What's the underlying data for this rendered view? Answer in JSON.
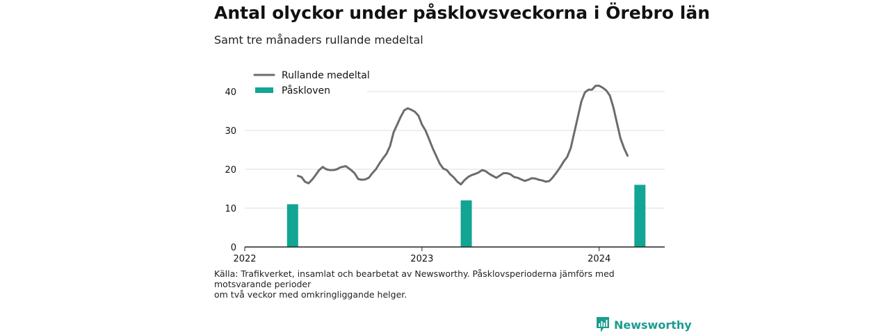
{
  "title": "Antal olyckor under påsklovsveckorna i Örebro län",
  "subtitle": "Samt tre månaders rullande medeltal",
  "source_line1": "Källa: Trafikverket, insamlat och bearbetat av Newsworthy. Påsklovsperioderna jämförs med motsvarande perioder",
  "source_line2": "om två veckor med omkringliggande helger.",
  "brand": "Newsworthy",
  "colors": {
    "line": "#6b6b70",
    "bar": "#12a594",
    "brand": "#1a9d8f",
    "grid": "#dddddd",
    "axis": "#222222"
  },
  "chart_data": {
    "type": "bar+line",
    "xlim": [
      2022.0,
      2024.37
    ],
    "ylim": [
      0,
      40
    ],
    "yticks": [
      0,
      10,
      20,
      30,
      40
    ],
    "xticks": [
      {
        "value": 2022.0,
        "label": "2022"
      },
      {
        "value": 2023.0,
        "label": "2023"
      },
      {
        "value": 2024.0,
        "label": "2024"
      }
    ],
    "grid": true,
    "legend_position": "top-left",
    "bars": {
      "name": "Påskloven",
      "points": [
        {
          "x": 2022.27,
          "y": 11
        },
        {
          "x": 2023.25,
          "y": 12
        },
        {
          "x": 2024.23,
          "y": 16
        }
      ]
    },
    "line": {
      "name": "Rullande medeltal",
      "points": [
        [
          2022.3,
          18.3
        ],
        [
          2022.32,
          18.0
        ],
        [
          2022.34,
          16.8
        ],
        [
          2022.36,
          16.4
        ],
        [
          2022.38,
          17.3
        ],
        [
          2022.4,
          18.5
        ],
        [
          2022.42,
          19.8
        ],
        [
          2022.44,
          20.6
        ],
        [
          2022.46,
          20.0
        ],
        [
          2022.48,
          19.8
        ],
        [
          2022.5,
          19.8
        ],
        [
          2022.52,
          20.0
        ],
        [
          2022.54,
          20.5
        ],
        [
          2022.57,
          20.8
        ],
        [
          2022.6,
          19.8
        ],
        [
          2022.62,
          19.0
        ],
        [
          2022.64,
          17.5
        ],
        [
          2022.66,
          17.3
        ],
        [
          2022.68,
          17.4
        ],
        [
          2022.7,
          17.8
        ],
        [
          2022.72,
          19.0
        ],
        [
          2022.74,
          20.0
        ],
        [
          2022.76,
          21.5
        ],
        [
          2022.78,
          22.8
        ],
        [
          2022.8,
          24.0
        ],
        [
          2022.82,
          26.0
        ],
        [
          2022.84,
          29.5
        ],
        [
          2022.86,
          31.5
        ],
        [
          2022.88,
          33.5
        ],
        [
          2022.9,
          35.2
        ],
        [
          2022.92,
          35.7
        ],
        [
          2022.94,
          35.3
        ],
        [
          2022.96,
          34.8
        ],
        [
          2022.98,
          33.8
        ],
        [
          2023.0,
          31.5
        ],
        [
          2023.02,
          30.0
        ],
        [
          2023.04,
          27.8
        ],
        [
          2023.06,
          25.5
        ],
        [
          2023.08,
          23.5
        ],
        [
          2023.1,
          21.5
        ],
        [
          2023.12,
          20.2
        ],
        [
          2023.14,
          19.8
        ],
        [
          2023.16,
          18.7
        ],
        [
          2023.18,
          17.9
        ],
        [
          2023.2,
          16.8
        ],
        [
          2023.22,
          16.1
        ],
        [
          2023.24,
          17.2
        ],
        [
          2023.26,
          18.0
        ],
        [
          2023.28,
          18.5
        ],
        [
          2023.3,
          18.8
        ],
        [
          2023.32,
          19.2
        ],
        [
          2023.34,
          19.8
        ],
        [
          2023.36,
          19.5
        ],
        [
          2023.38,
          18.8
        ],
        [
          2023.4,
          18.3
        ],
        [
          2023.42,
          17.8
        ],
        [
          2023.44,
          18.4
        ],
        [
          2023.46,
          19.0
        ],
        [
          2023.48,
          19.0
        ],
        [
          2023.5,
          18.7
        ],
        [
          2023.52,
          18.0
        ],
        [
          2023.54,
          17.8
        ],
        [
          2023.56,
          17.4
        ],
        [
          2023.58,
          17.0
        ],
        [
          2023.6,
          17.3
        ],
        [
          2023.62,
          17.7
        ],
        [
          2023.64,
          17.6
        ],
        [
          2023.66,
          17.3
        ],
        [
          2023.68,
          17.1
        ],
        [
          2023.7,
          16.8
        ],
        [
          2023.72,
          17.0
        ],
        [
          2023.74,
          18.0
        ],
        [
          2023.76,
          19.2
        ],
        [
          2023.78,
          20.5
        ],
        [
          2023.8,
          22.0
        ],
        [
          2023.82,
          23.2
        ],
        [
          2023.84,
          25.5
        ],
        [
          2023.86,
          29.5
        ],
        [
          2023.88,
          33.5
        ],
        [
          2023.9,
          37.5
        ],
        [
          2023.92,
          39.8
        ],
        [
          2023.94,
          40.5
        ],
        [
          2023.96,
          40.5
        ],
        [
          2023.98,
          41.5
        ],
        [
          2024.0,
          41.5
        ],
        [
          2024.02,
          41.0
        ],
        [
          2024.04,
          40.3
        ],
        [
          2024.06,
          39.0
        ],
        [
          2024.08,
          36.0
        ],
        [
          2024.1,
          32.0
        ],
        [
          2024.12,
          28.0
        ],
        [
          2024.14,
          25.5
        ],
        [
          2024.16,
          23.5
        ]
      ]
    }
  }
}
